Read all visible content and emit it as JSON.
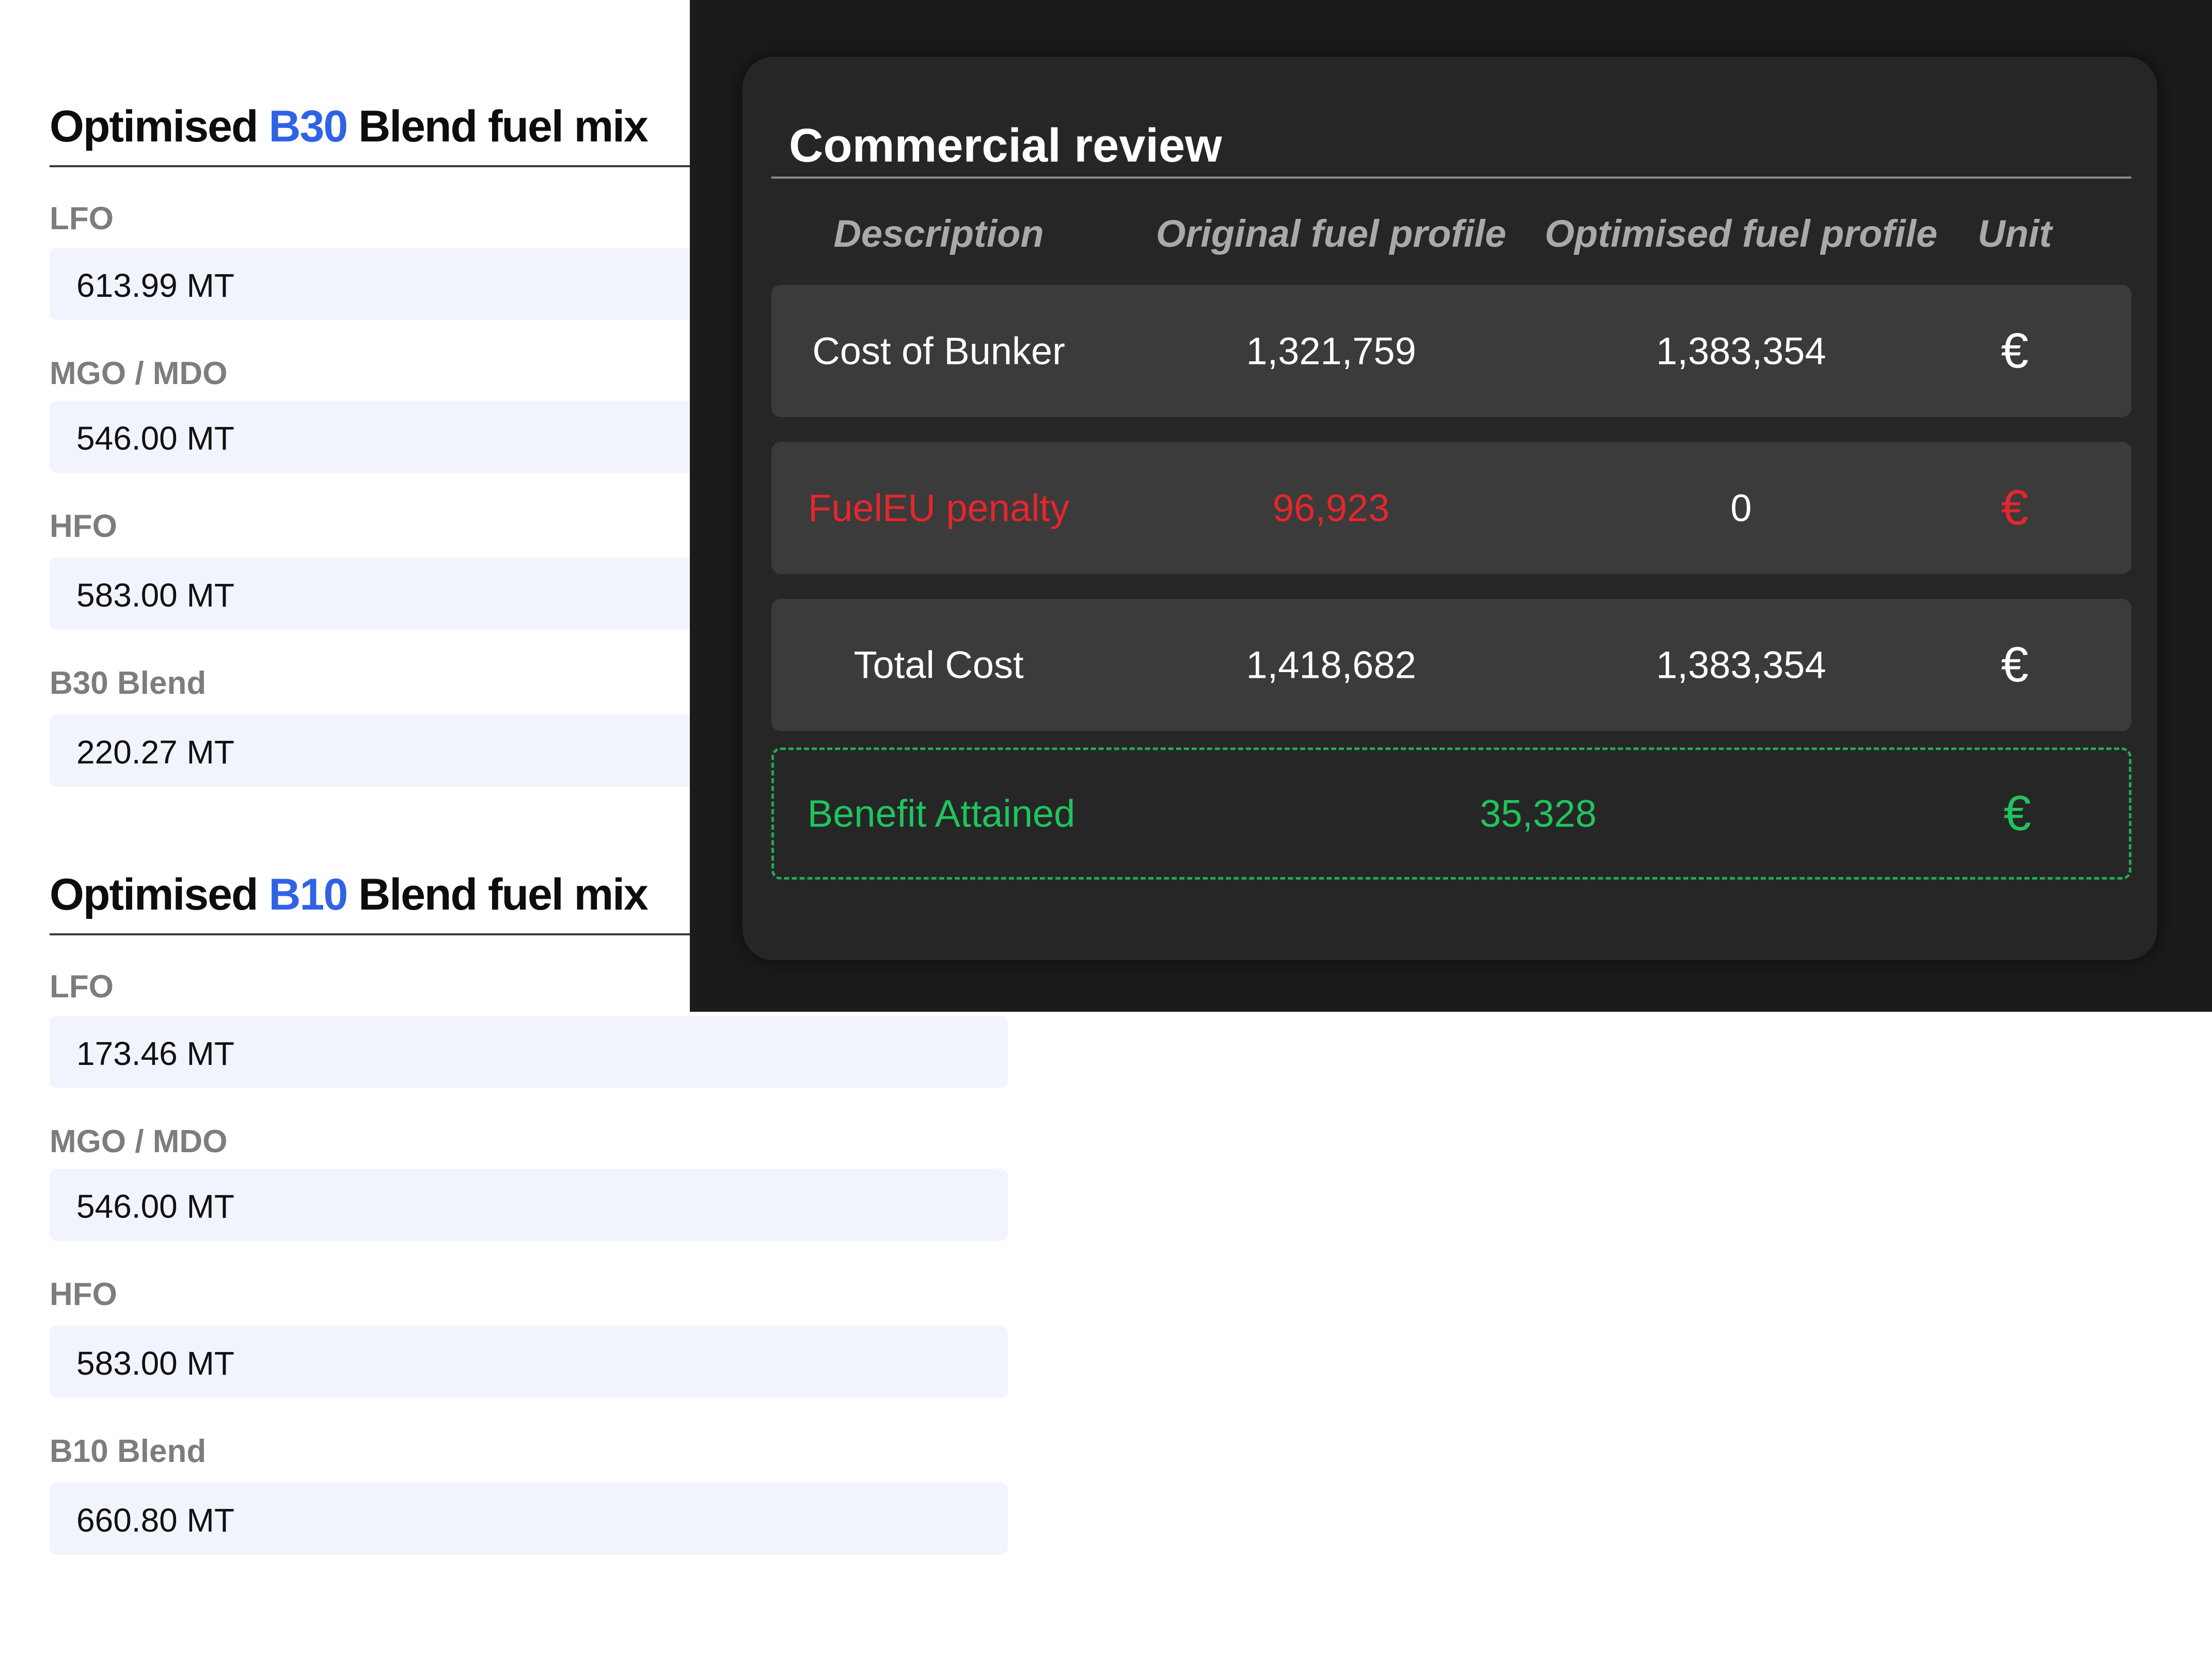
{
  "b30": {
    "title_prefix": "Optimised",
    "title_accent": "B30",
    "title_suffix": "Blend fuel mix",
    "fuels": [
      {
        "label": "LFO",
        "value": "613.99 MT"
      },
      {
        "label": "MGO / MDO",
        "value": "546.00 MT"
      },
      {
        "label": "HFO",
        "value": "583.00 MT"
      },
      {
        "label": "B30 Blend",
        "value": "220.27 MT"
      }
    ]
  },
  "b10": {
    "title_prefix": "Optimised",
    "title_accent": "B10",
    "title_suffix": "Blend fuel mix",
    "fuels": [
      {
        "label": "LFO",
        "value": "173.46 MT"
      },
      {
        "label": "MGO / MDO",
        "value": "546.00 MT"
      },
      {
        "label": "HFO",
        "value": "583.00 MT"
      },
      {
        "label": "B10 Blend",
        "value": "660.80 MT"
      }
    ]
  },
  "review": {
    "title": "Commercial review",
    "headers": {
      "description": "Description",
      "original": "Original fuel profile",
      "optimised": "Optimised fuel profile",
      "unit": "Unit"
    },
    "rows": [
      {
        "description": "Cost of Bunker",
        "original": "1,321,759",
        "optimised": "1,383,354",
        "unit": "€"
      },
      {
        "description": "FuelEU penalty",
        "original": "96,923",
        "optimised": "0",
        "unit": "€"
      },
      {
        "description": "Total Cost",
        "original": "1,418,682",
        "optimised": "1,383,354",
        "unit": "€"
      }
    ],
    "benefit": {
      "description": "Benefit Attained",
      "value": "35,328",
      "unit": "€"
    }
  },
  "colors": {
    "accent_blue": "#2f63e6",
    "penalty_red": "#e5262c",
    "benefit_green": "#1fc45e",
    "panel_bg": "#1b1b1b",
    "card_bg": "#262626",
    "row_bg": "#3b3b3b",
    "input_bg": "#f1f4fd"
  }
}
